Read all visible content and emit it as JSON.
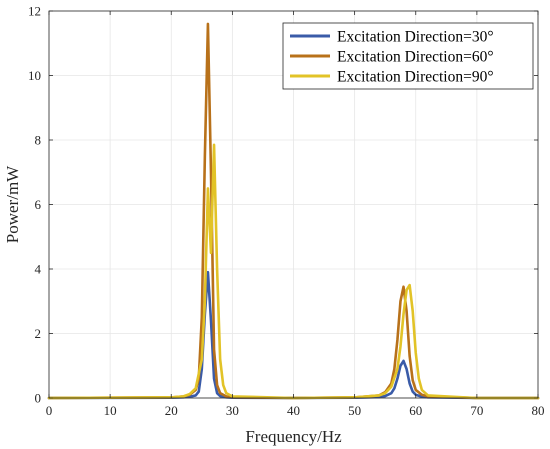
{
  "chart_data": {
    "type": "line",
    "title": "",
    "xlabel": "Frequency/Hz",
    "ylabel": "Power/mW",
    "xlim": [
      0,
      80
    ],
    "ylim": [
      0,
      12
    ],
    "xticks": [
      "0",
      "10",
      "20",
      "30",
      "40",
      "50",
      "60",
      "70",
      "80"
    ],
    "yticks": [
      "0",
      "2",
      "4",
      "6",
      "8",
      "10",
      "12"
    ],
    "grid": true,
    "legend_position": "top-right",
    "series": [
      {
        "name": "Excitation Direction=30°",
        "color": "#3a5ba8",
        "x": [
          0,
          20,
          22,
          23,
          24,
          24.5,
          25,
          25.5,
          26,
          26.5,
          27,
          27.5,
          28,
          29,
          30,
          40,
          50,
          54,
          55,
          56,
          56.5,
          57,
          57.5,
          58,
          58.5,
          59,
          59.5,
          60,
          61,
          62,
          70,
          80
        ],
        "y": [
          0,
          0.01,
          0.02,
          0.04,
          0.08,
          0.2,
          0.9,
          2.6,
          3.9,
          2.4,
          0.6,
          0.15,
          0.06,
          0.02,
          0.01,
          0,
          0.01,
          0.03,
          0.06,
          0.15,
          0.3,
          0.6,
          1.0,
          1.15,
          0.9,
          0.45,
          0.2,
          0.1,
          0.04,
          0.02,
          0,
          0
        ]
      },
      {
        "name": "Excitation Direction=60°",
        "color": "#b8711a",
        "x": [
          0,
          20,
          22,
          23,
          24,
          24.5,
          25,
          25.5,
          26,
          26.5,
          27,
          27.5,
          28,
          29,
          30,
          40,
          50,
          54,
          55,
          56,
          56.5,
          57,
          57.5,
          58,
          58.5,
          59,
          59.5,
          60,
          61,
          62,
          70,
          80
        ],
        "y": [
          0,
          0.02,
          0.05,
          0.1,
          0.25,
          0.6,
          2.5,
          7.5,
          11.6,
          7.0,
          1.5,
          0.4,
          0.15,
          0.05,
          0.02,
          0,
          0.02,
          0.08,
          0.18,
          0.45,
          0.9,
          1.8,
          3.0,
          3.45,
          2.7,
          1.3,
          0.55,
          0.25,
          0.1,
          0.05,
          0,
          0
        ]
      },
      {
        "name": "Excitation Direction=90°",
        "color": "#e2c327",
        "x": [
          0,
          20,
          22,
          23,
          24,
          25,
          25.5,
          26,
          26.5,
          27,
          27.5,
          28,
          28.5,
          29,
          30,
          40,
          50,
          54,
          55,
          56,
          57,
          57.5,
          58,
          58.5,
          59,
          59.5,
          60,
          60.5,
          61,
          62,
          70,
          80
        ],
        "y": [
          0,
          0.02,
          0.05,
          0.12,
          0.3,
          1.2,
          3.0,
          6.5,
          4.5,
          7.85,
          4.0,
          1.2,
          0.4,
          0.15,
          0.05,
          0,
          0.02,
          0.08,
          0.15,
          0.35,
          0.9,
          1.6,
          2.6,
          3.35,
          3.5,
          2.7,
          1.4,
          0.6,
          0.25,
          0.08,
          0,
          0
        ]
      }
    ]
  }
}
